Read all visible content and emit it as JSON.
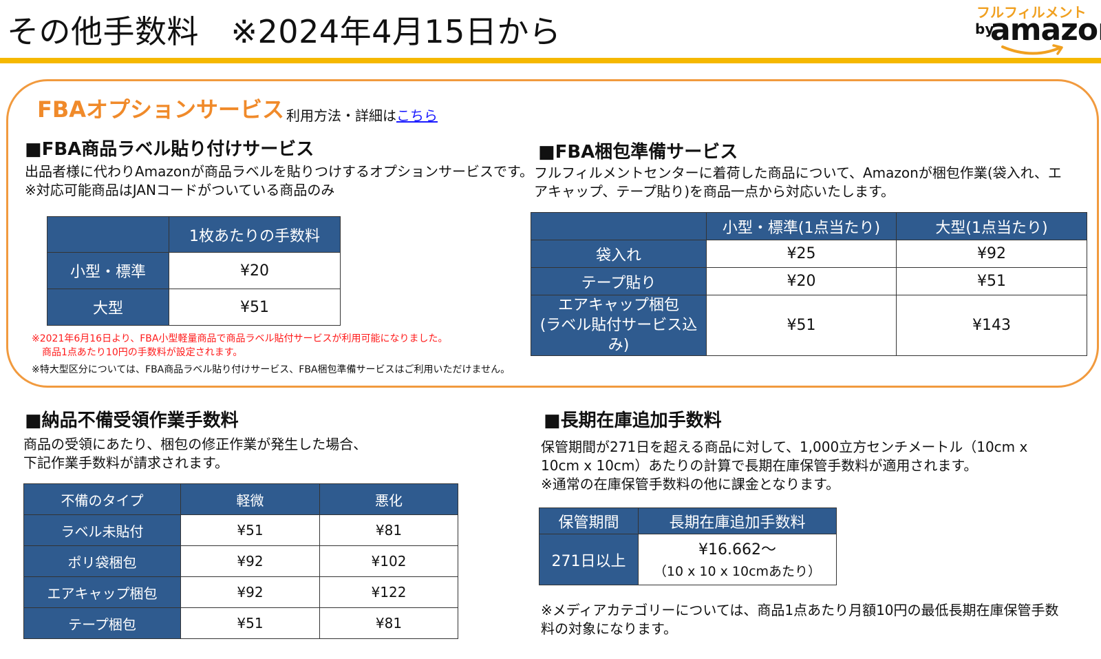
{
  "header": {
    "title": "その他手数料　※2024年4月15日から",
    "brand_kana": "フルフィルメント",
    "brand_by": "by",
    "brand_name": "amazon"
  },
  "option": {
    "heading": "FBAオプションサービス",
    "sub_text": "利用方法・詳細は",
    "link_text": "こちら"
  },
  "label_service": {
    "title": "■FBA商品ラベル貼り付けサービス",
    "desc": [
      "出品者様に代わりAmazonが商品ラベルを貼りつけするオプションサービスです。",
      "※対応可能商品はJANコードがついている商品のみ"
    ],
    "table": {
      "header": [
        "",
        "1枚あたりの手数料"
      ],
      "rows": [
        [
          "小型・標準",
          "¥20"
        ],
        [
          "大型",
          "¥51"
        ]
      ]
    },
    "note_red": [
      "※2021年6月16日より、FBA小型軽量商品で商品ラベル貼付サービスが利用可能になりました。",
      "商品1点あたり10円の手数料が設定されます。"
    ],
    "note_black": "※特大型区分については、FBA商品ラベル貼り付けサービス、FBA梱包準備サービスはご利用いただけません。"
  },
  "prep_service": {
    "title": "■FBA梱包準備サービス",
    "desc": [
      "フルフィルメントセンターに着荷した商品について、Amazonが梱包作業(袋入れ、エ",
      "アキャップ、テープ貼り)を商品一点から対応いたします。"
    ],
    "table": {
      "header": [
        "",
        "小型・標準(1点当たり)",
        "大型(1点当たり)"
      ],
      "rows": [
        [
          "袋入れ",
          "¥25",
          "¥92"
        ],
        [
          "テープ貼り",
          "¥20",
          "¥51"
        ],
        [
          "エアキャップ梱包\n(ラベル貼付サービス込み)",
          "¥51",
          "¥143"
        ]
      ]
    }
  },
  "defect": {
    "title": "■納品不備受領作業手数料",
    "desc": [
      "商品の受領にあたり、梱包の修正作業が発生した場合、",
      "下記作業手数料が請求されます。"
    ],
    "table": {
      "header": [
        "不備のタイプ",
        "軽微",
        "悪化"
      ],
      "rows": [
        [
          "ラベル未貼付",
          "¥51",
          "¥81"
        ],
        [
          "ポリ袋梱包",
          "¥92",
          "¥102"
        ],
        [
          "エアキャップ梱包",
          "¥92",
          "¥122"
        ],
        [
          "テープ梱包",
          "¥51",
          "¥81"
        ]
      ]
    }
  },
  "longterm": {
    "title": "■長期在庫追加手数料",
    "desc": [
      "保管期間が271日を超える商品に対して、1,000立方センチメートル（10cm x",
      "10cm x 10cm）あたりの計算で長期在庫保管手数料が適用されます。",
      "※通常の在庫保管手数料の他に課金となります。"
    ],
    "table": {
      "header": [
        "保管期間",
        "長期在庫追加手数料"
      ],
      "period": "271日以上",
      "fee": "¥16.662～",
      "fee_note": "（10 x 10 x 10cmあたり）"
    },
    "note": [
      "※メディアカテゴリーについては、商品1点あたり月額10円の最低長期在庫保管手数",
      "料の対象になります。"
    ]
  },
  "colors": {
    "header_rule": "#f5b800",
    "box_border": "#f19a3e",
    "heading_orange": "#f08a2a",
    "table_header_blue": "#2f5b8f",
    "note_red": "#ff1a1a",
    "link_blue": "#1a1aff"
  }
}
